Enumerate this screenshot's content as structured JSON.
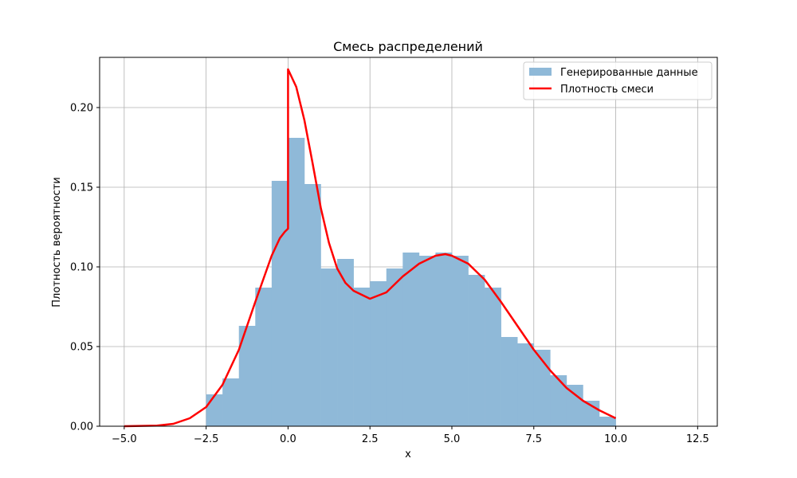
{
  "chart_data": {
    "type": "bar",
    "title": "Смесь распределений",
    "xlabel": "x",
    "ylabel": "Плотность вероятности",
    "xlim": [
      -5.75,
      13.1
    ],
    "ylim": [
      0,
      0.2315
    ],
    "xticks": [
      -5.0,
      -2.5,
      0.0,
      2.5,
      5.0,
      7.5,
      10.0,
      12.5
    ],
    "xtick_labels": [
      "−5.0",
      "−2.5",
      "0.0",
      "2.5",
      "5.0",
      "7.5",
      "10.0",
      "12.5"
    ],
    "yticks": [
      0.0,
      0.05,
      0.1,
      0.15,
      0.2
    ],
    "ytick_labels": [
      "0.00",
      "0.05",
      "0.10",
      "0.15",
      "0.20"
    ],
    "grid": true,
    "legend_position": "top-right",
    "colors": {
      "histogram": "#8fb9d8",
      "density": "#ff0000",
      "grid": "#b0b0b0"
    },
    "series": [
      {
        "name": "Генерированные данные",
        "kind": "histogram",
        "bin_start": -2.5,
        "bin_width": 0.5,
        "values": [
          0.02,
          0.03,
          0.063,
          0.087,
          0.154,
          0.181,
          0.152,
          0.099,
          0.105,
          0.087,
          0.091,
          0.099,
          0.109,
          0.107,
          0.109,
          0.107,
          0.095,
          0.087,
          0.056,
          0.052,
          0.048,
          0.032,
          0.026,
          0.016,
          0.006,
          0,
          0,
          0,
          0,
          0,
          0,
          0,
          0,
          0,
          0,
          0,
          0,
          0,
          0.002
        ]
      },
      {
        "name": "Плотность смеси",
        "kind": "line",
        "x": [
          -5.0,
          -4.0,
          -3.5,
          -3.0,
          -2.5,
          -2.0,
          -1.5,
          -1.0,
          -0.5,
          -0.25,
          -0.1,
          0.0,
          0.0,
          0.25,
          0.5,
          0.75,
          1.0,
          1.25,
          1.5,
          1.75,
          2.0,
          2.5,
          3.0,
          3.5,
          4.0,
          4.5,
          4.8,
          5.0,
          5.5,
          6.0,
          6.5,
          7.0,
          7.5,
          8.0,
          8.5,
          9.0,
          9.5,
          10.0
        ],
        "y": [
          0.0,
          0.0004,
          0.0015,
          0.005,
          0.012,
          0.026,
          0.048,
          0.078,
          0.107,
          0.118,
          0.122,
          0.124,
          0.224,
          0.213,
          0.192,
          0.165,
          0.137,
          0.115,
          0.099,
          0.09,
          0.085,
          0.08,
          0.084,
          0.094,
          0.102,
          0.107,
          0.108,
          0.107,
          0.102,
          0.092,
          0.078,
          0.063,
          0.048,
          0.035,
          0.024,
          0.016,
          0.01,
          0.005
        ]
      }
    ]
  }
}
